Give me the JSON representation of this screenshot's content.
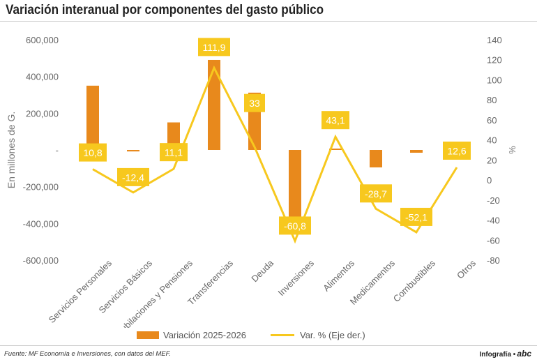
{
  "title": "Variación interanual por componentes del gasto público",
  "chart_data": {
    "type": "bar",
    "categories": [
      "Servicios Personales",
      "Servicios Básicos",
      "Jubilaciones y Pensiones",
      "Transferencias",
      "Deuda",
      "Inversiones",
      "Alimentos",
      "Medicamentos",
      "Combustibles",
      "Otros"
    ],
    "series": [
      {
        "name": "Variación 2025-2026",
        "type": "bar",
        "axis": "left",
        "values": [
          350000,
          -8000,
          150000,
          490000,
          312000,
          -370000,
          5000,
          -95000,
          -15000,
          0
        ]
      },
      {
        "name": "Var. % (Eje der.)",
        "type": "line",
        "axis": "right",
        "values": [
          10.8,
          -12.4,
          11.1,
          111.9,
          33,
          -60.8,
          43.1,
          -28.7,
          -52.1,
          12.6
        ],
        "labels": [
          "10,8",
          "-12,4",
          "11,1",
          "111,9",
          "33",
          "-60,8",
          "43,1",
          "-28,7",
          "-52,1",
          "12,6"
        ]
      }
    ],
    "ylabel": "En millones de G.",
    "y2label": "%",
    "ylim": [
      -600000,
      600000
    ],
    "y2lim": [
      -80,
      140
    ],
    "yticks": [
      "600,000",
      "400,000",
      "200,000",
      "-",
      "-200,000",
      "-400,000",
      "-600,000"
    ],
    "y2ticks": [
      "140",
      "120",
      "100",
      "80",
      "60",
      "40",
      "20",
      "0",
      "-20",
      "-40",
      "-60",
      "-80"
    ],
    "legend_position": "bottom",
    "colors": {
      "bar": "#e8891c",
      "line": "#f7c81e",
      "label_box": "#f7c81e"
    }
  },
  "legend": {
    "bar_label": "Variación 2025-2026",
    "line_label": "Var. % (Eje der.)"
  },
  "footer": {
    "source": "Fuente: MF Economía e Inversiones, con datos del MEF.",
    "credit": "Infografía •",
    "logo": "abc"
  }
}
